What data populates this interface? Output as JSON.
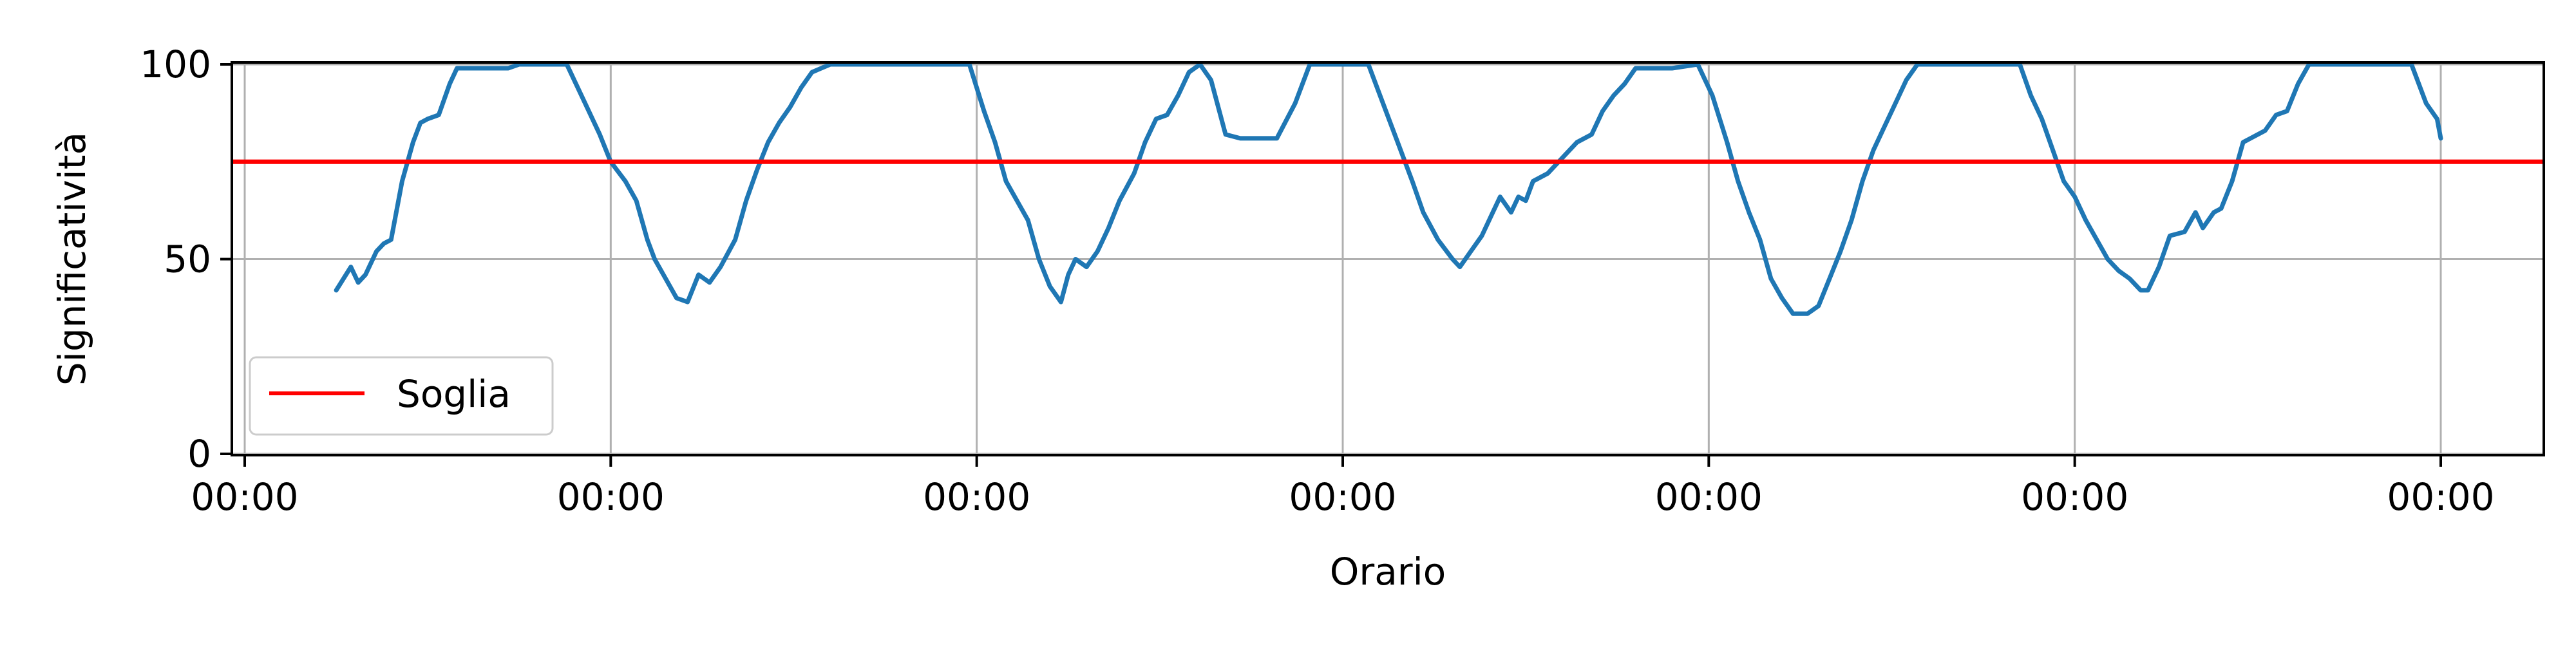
{
  "chart_data": {
    "type": "line",
    "title": "",
    "xlabel": "Orario",
    "ylabel": "Significatività",
    "ylim": [
      0,
      100
    ],
    "yticks": [
      0,
      50,
      100
    ],
    "xlim": [
      -0.04,
      6.28
    ],
    "xticks": [
      0,
      1,
      2,
      3,
      4,
      5,
      6
    ],
    "xtick_labels": [
      "00:00",
      "00:00",
      "00:00",
      "00:00",
      "00:00",
      "00:00",
      "00:00"
    ],
    "grid": true,
    "legend_position": "lower-left",
    "series": [
      {
        "name": "",
        "color": "#1f77b4",
        "points": [
          [
            0.25,
            42
          ],
          [
            0.29,
            48
          ],
          [
            0.31,
            44
          ],
          [
            0.33,
            46
          ],
          [
            0.36,
            52
          ],
          [
            0.38,
            54
          ],
          [
            0.4,
            55
          ],
          [
            0.43,
            70
          ],
          [
            0.46,
            80
          ],
          [
            0.48,
            85
          ],
          [
            0.5,
            86
          ],
          [
            0.53,
            87
          ],
          [
            0.56,
            95
          ],
          [
            0.58,
            99
          ],
          [
            0.62,
            99
          ],
          [
            0.72,
            99
          ],
          [
            0.75,
            100
          ],
          [
            0.88,
            100
          ],
          [
            0.93,
            90
          ],
          [
            0.97,
            82
          ],
          [
            1.0,
            75
          ],
          [
            1.04,
            70
          ],
          [
            1.07,
            65
          ],
          [
            1.1,
            55
          ],
          [
            1.12,
            50
          ],
          [
            1.15,
            45
          ],
          [
            1.18,
            40
          ],
          [
            1.21,
            39
          ],
          [
            1.24,
            46
          ],
          [
            1.27,
            44
          ],
          [
            1.3,
            48
          ],
          [
            1.34,
            55
          ],
          [
            1.37,
            65
          ],
          [
            1.4,
            73
          ],
          [
            1.43,
            80
          ],
          [
            1.46,
            85
          ],
          [
            1.49,
            89
          ],
          [
            1.52,
            94
          ],
          [
            1.55,
            98
          ],
          [
            1.6,
            100
          ],
          [
            1.98,
            100
          ],
          [
            2.02,
            88
          ],
          [
            2.05,
            80
          ],
          [
            2.08,
            70
          ],
          [
            2.11,
            65
          ],
          [
            2.14,
            60
          ],
          [
            2.17,
            50
          ],
          [
            2.2,
            43
          ],
          [
            2.23,
            39
          ],
          [
            2.25,
            46
          ],
          [
            2.27,
            50
          ],
          [
            2.3,
            48
          ],
          [
            2.33,
            52
          ],
          [
            2.36,
            58
          ],
          [
            2.39,
            65
          ],
          [
            2.43,
            72
          ],
          [
            2.46,
            80
          ],
          [
            2.49,
            86
          ],
          [
            2.52,
            87
          ],
          [
            2.55,
            92
          ],
          [
            2.58,
            98
          ],
          [
            2.61,
            100
          ],
          [
            2.64,
            96
          ],
          [
            2.68,
            82
          ],
          [
            2.72,
            81
          ],
          [
            2.82,
            81
          ],
          [
            2.87,
            90
          ],
          [
            2.91,
            100
          ],
          [
            3.07,
            100
          ],
          [
            3.11,
            90
          ],
          [
            3.15,
            80
          ],
          [
            3.19,
            70
          ],
          [
            3.22,
            62
          ],
          [
            3.26,
            55
          ],
          [
            3.3,
            50
          ],
          [
            3.32,
            48
          ],
          [
            3.35,
            52
          ],
          [
            3.38,
            56
          ],
          [
            3.41,
            62
          ],
          [
            3.43,
            66
          ],
          [
            3.46,
            62
          ],
          [
            3.48,
            66
          ],
          [
            3.5,
            65
          ],
          [
            3.52,
            70
          ],
          [
            3.56,
            72
          ],
          [
            3.6,
            76
          ],
          [
            3.64,
            80
          ],
          [
            3.68,
            82
          ],
          [
            3.71,
            88
          ],
          [
            3.74,
            92
          ],
          [
            3.77,
            95
          ],
          [
            3.8,
            99
          ],
          [
            3.9,
            99
          ],
          [
            3.97,
            100
          ],
          [
            4.01,
            92
          ],
          [
            4.05,
            80
          ],
          [
            4.08,
            70
          ],
          [
            4.11,
            62
          ],
          [
            4.14,
            55
          ],
          [
            4.17,
            45
          ],
          [
            4.2,
            40
          ],
          [
            4.23,
            36
          ],
          [
            4.27,
            36
          ],
          [
            4.3,
            38
          ],
          [
            4.33,
            45
          ],
          [
            4.36,
            52
          ],
          [
            4.39,
            60
          ],
          [
            4.42,
            70
          ],
          [
            4.45,
            78
          ],
          [
            4.48,
            84
          ],
          [
            4.51,
            90
          ],
          [
            4.54,
            96
          ],
          [
            4.57,
            100
          ],
          [
            4.85,
            100
          ],
          [
            4.88,
            92
          ],
          [
            4.91,
            86
          ],
          [
            4.94,
            78
          ],
          [
            4.97,
            70
          ],
          [
            5.0,
            66
          ],
          [
            5.03,
            60
          ],
          [
            5.06,
            55
          ],
          [
            5.09,
            50
          ],
          [
            5.12,
            47
          ],
          [
            5.15,
            45
          ],
          [
            5.18,
            42
          ],
          [
            5.2,
            42
          ],
          [
            5.23,
            48
          ],
          [
            5.26,
            56
          ],
          [
            5.3,
            57
          ],
          [
            5.33,
            62
          ],
          [
            5.35,
            58
          ],
          [
            5.38,
            62
          ],
          [
            5.4,
            63
          ],
          [
            5.43,
            70
          ],
          [
            5.46,
            80
          ],
          [
            5.48,
            81
          ],
          [
            5.52,
            83
          ],
          [
            5.55,
            87
          ],
          [
            5.58,
            88
          ],
          [
            5.61,
            95
          ],
          [
            5.64,
            100
          ],
          [
            5.92,
            100
          ],
          [
            5.96,
            90
          ],
          [
            5.99,
            86
          ],
          [
            6.0,
            81
          ]
        ]
      },
      {
        "name": "Soglia",
        "color": "#ff0000",
        "constant": 75
      }
    ]
  }
}
